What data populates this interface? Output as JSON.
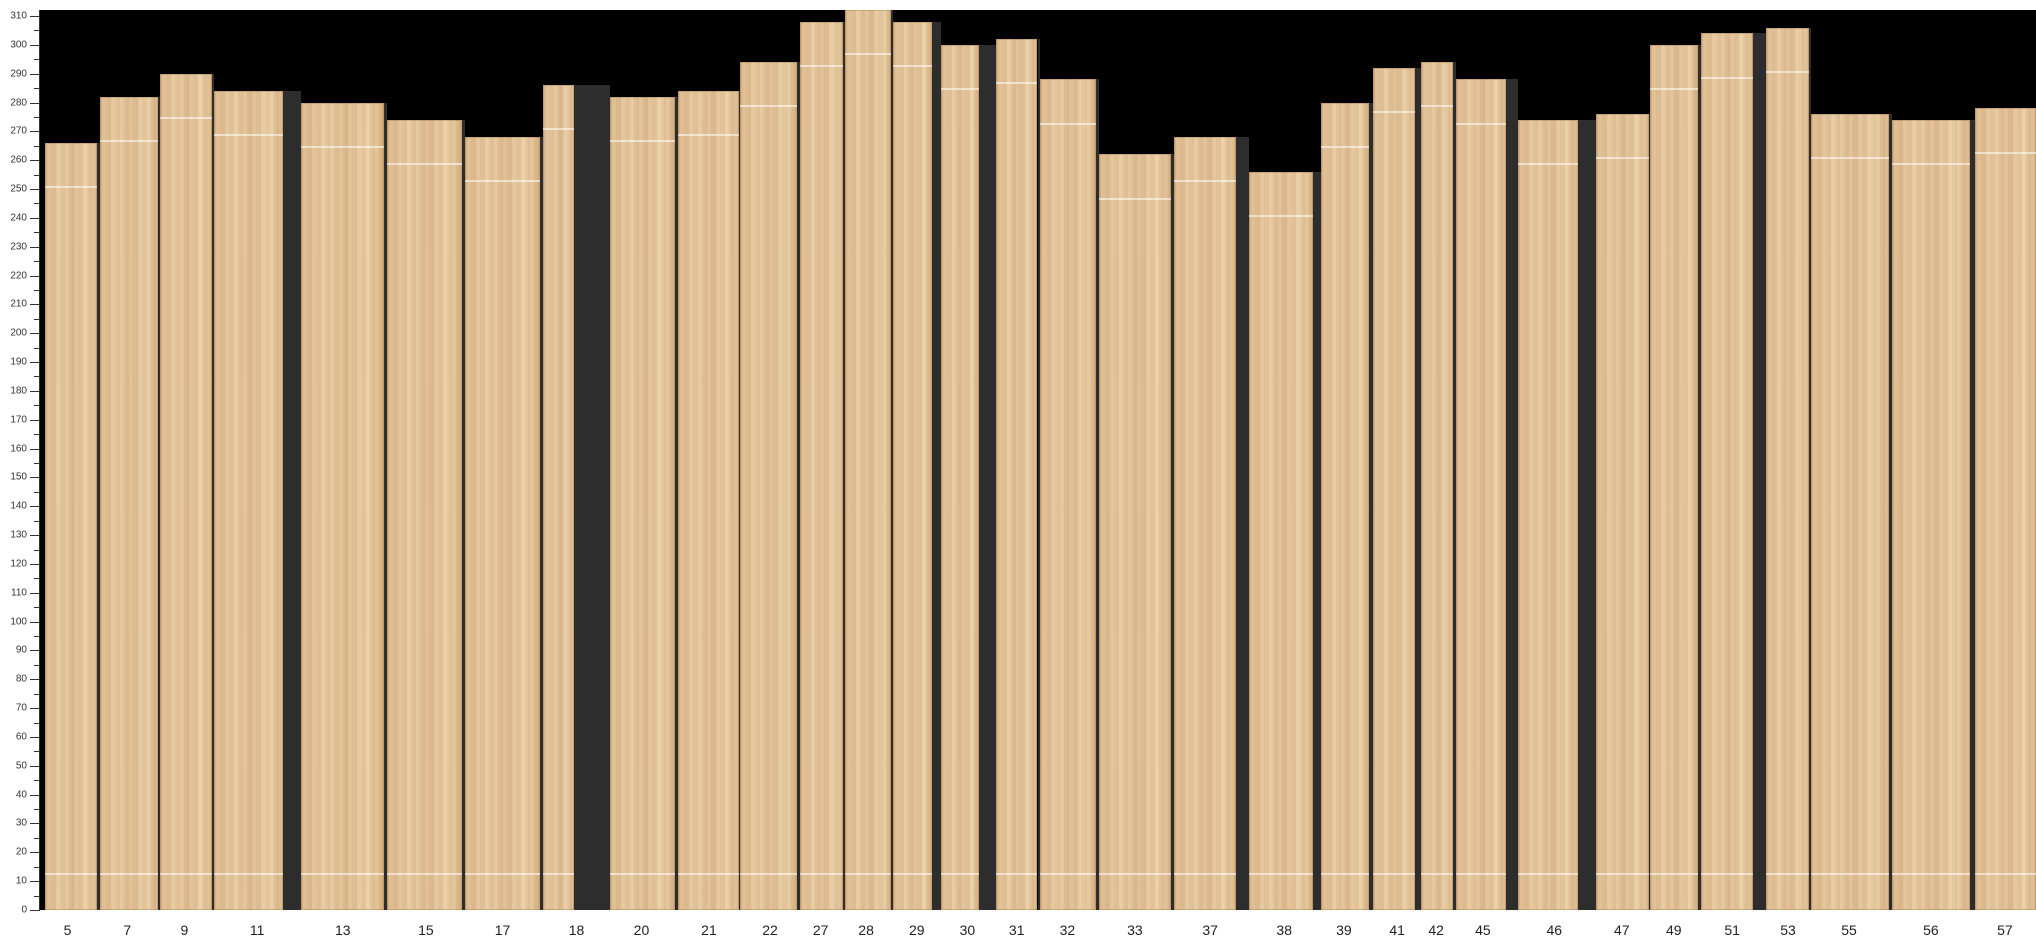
{
  "chart_data": {
    "type": "bar",
    "categories": [
      "5",
      "7",
      "9",
      "11",
      "13",
      "15",
      "17",
      "18",
      "20",
      "21",
      "22",
      "27",
      "28",
      "29",
      "30",
      "31",
      "32",
      "33",
      "37",
      "38",
      "39",
      "41",
      "42",
      "45",
      "46",
      "47",
      "49",
      "51",
      "53",
      "55",
      "56",
      "57"
    ],
    "values": [
      266,
      282,
      290,
      284,
      280,
      274,
      268,
      286,
      282,
      284,
      294,
      308,
      312,
      308,
      300,
      302,
      288,
      262,
      268,
      256,
      280,
      292,
      294,
      288,
      274,
      276,
      300,
      304,
      306,
      276,
      274,
      278
    ],
    "ylim": [
      0,
      310
    ],
    "yticks": [
      0,
      10,
      20,
      30,
      40,
      50,
      60,
      70,
      80,
      90,
      100,
      110,
      120,
      130,
      140,
      150,
      160,
      170,
      180,
      190,
      200,
      210,
      220,
      230,
      240,
      250,
      260,
      270,
      280,
      290,
      300,
      310
    ],
    "grid": false,
    "background": "#000000",
    "bar_color": "#e2c398",
    "gap_color": "#2d2d2d"
  }
}
